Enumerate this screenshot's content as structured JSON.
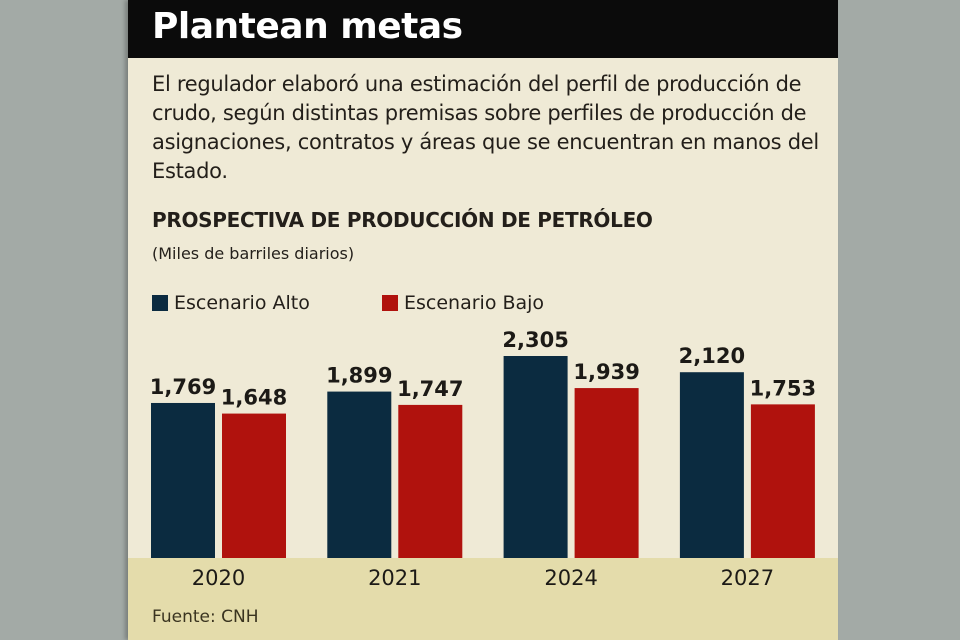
{
  "header": {
    "title": "Plantean metas"
  },
  "description": "El regulador elaboró una estimación del perfil de producción de crudo, según distintas premisas sobre perfiles de producción de asignaciones, contratos y áreas que se encuentran en manos del Estado.",
  "source": "Fuente: CNH",
  "colors": {
    "alto": "#0b2b40",
    "bajo": "#b0120d"
  },
  "chart_data": {
    "type": "bar",
    "title": "PROSPECTIVA DE PRODUCCIÓN DE PETRÓLEO",
    "subtitle": "(Miles de barriles diarios)",
    "categories": [
      "2020",
      "2021",
      "2024",
      "2027"
    ],
    "series": [
      {
        "name": "Escenario Alto",
        "values": [
          1769,
          1899,
          2305,
          2120
        ],
        "labels": [
          "1,769",
          "1,899",
          "2,305",
          "2,120"
        ]
      },
      {
        "name": "Escenario Bajo",
        "values": [
          1648,
          1747,
          1939,
          1753
        ],
        "labels": [
          "1,648",
          "1,747",
          "1,939",
          "1,753"
        ]
      }
    ],
    "ylim": [
      0,
      2305
    ],
    "legend": "top-left",
    "grid": false
  }
}
